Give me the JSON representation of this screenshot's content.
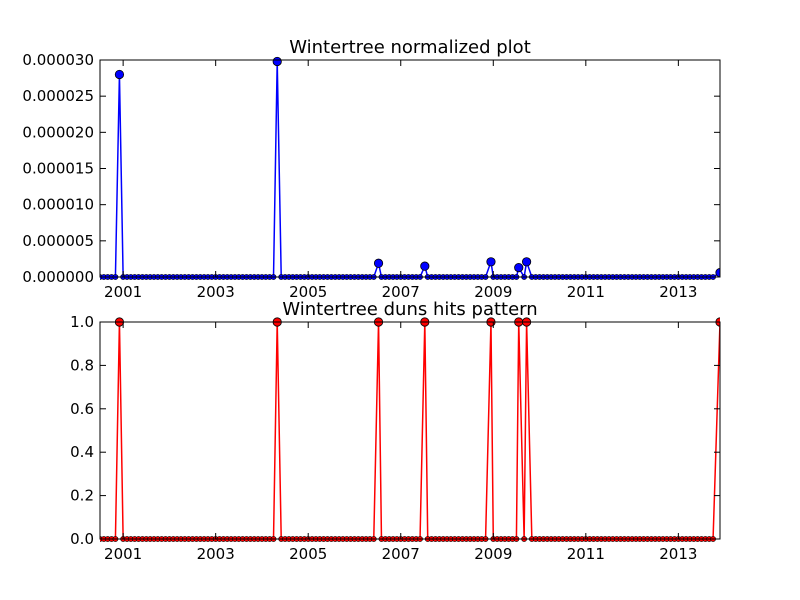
{
  "chart_data": [
    {
      "type": "line",
      "title": "Wintertree normalized plot",
      "xlabel": "",
      "ylabel": "",
      "xlim": [
        2000.5,
        2013.9
      ],
      "ylim": [
        0,
        3e-05
      ],
      "x_ticks": [
        2001,
        2003,
        2005,
        2007,
        2009,
        2011,
        2013
      ],
      "y_ticks": [
        "0.000000",
        "0.000005",
        "0.000010",
        "0.000015",
        "0.000020",
        "0.000025",
        "0.000030"
      ],
      "grid": false,
      "series": [
        {
          "color": "#0000ff",
          "points": [
            {
              "x": 2000.92,
              "y": 2.8e-05
            },
            {
              "x": 2004.33,
              "y": 2.98e-05
            },
            {
              "x": 2006.52,
              "y": 1.9e-06
            },
            {
              "x": 2007.52,
              "y": 1.5e-06
            },
            {
              "x": 2008.95,
              "y": 2.1e-06
            },
            {
              "x": 2009.55,
              "y": 1.3e-06
            },
            {
              "x": 2009.72,
              "y": 2.1e-06
            },
            {
              "x": 2013.9,
              "y": 6e-07
            }
          ],
          "baseline": 0
        }
      ]
    },
    {
      "type": "line",
      "title": "Wintertree duns hits pattern",
      "xlabel": "",
      "ylabel": "",
      "xlim": [
        2000.5,
        2013.9
      ],
      "ylim": [
        0,
        1
      ],
      "x_ticks": [
        2001,
        2003,
        2005,
        2007,
        2009,
        2011,
        2013
      ],
      "y_ticks": [
        "0.0",
        "0.2",
        "0.4",
        "0.6",
        "0.8",
        "1.0"
      ],
      "grid": false,
      "series": [
        {
          "color": "#ff0000",
          "points": [
            {
              "x": 2000.92,
              "y": 1
            },
            {
              "x": 2004.33,
              "y": 1
            },
            {
              "x": 2006.52,
              "y": 1
            },
            {
              "x": 2007.52,
              "y": 1
            },
            {
              "x": 2008.95,
              "y": 1
            },
            {
              "x": 2009.55,
              "y": 1
            },
            {
              "x": 2009.72,
              "y": 1
            },
            {
              "x": 2013.9,
              "y": 1
            }
          ],
          "baseline": 0
        }
      ]
    }
  ]
}
